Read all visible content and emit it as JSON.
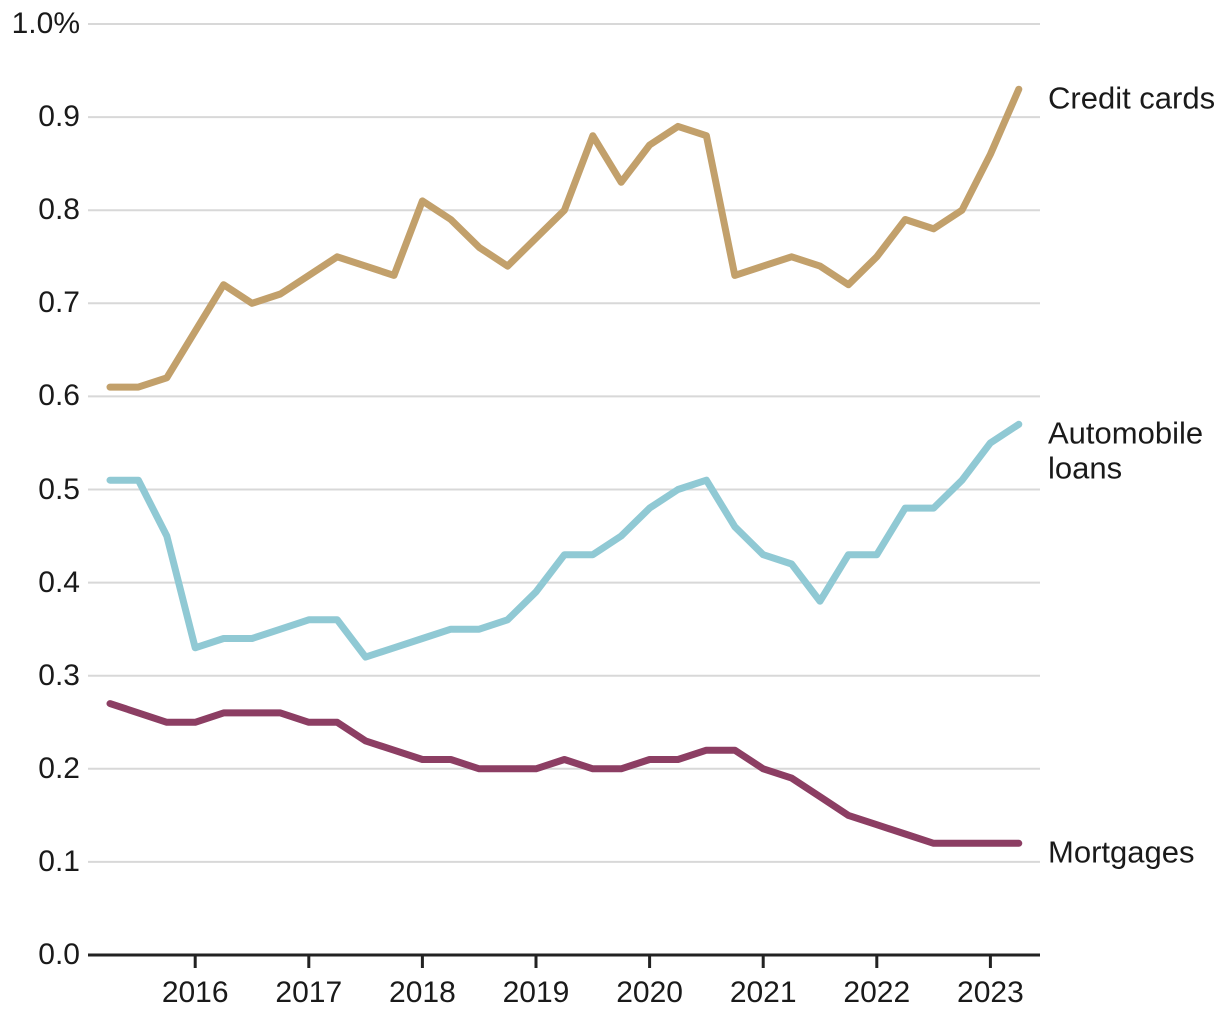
{
  "chart_data": {
    "type": "line",
    "title": "",
    "unit": "%",
    "grid": true,
    "legend_position": "right-of-line-end",
    "x_axis": {
      "frequency": "quarterly",
      "start_year": 2015,
      "start_quarter": 2,
      "end_year": 2023,
      "end_quarter": 2,
      "tick_years": [
        2016,
        2017,
        2018,
        2019,
        2020,
        2021,
        2022,
        2023
      ],
      "tick_labels": [
        "2016",
        "2017",
        "2018",
        "2019",
        "2020",
        "2021",
        "2022",
        "2023"
      ]
    },
    "y_axis": {
      "min": 0.0,
      "max": 1.0,
      "tick_interval": 0.1,
      "tick_values": [
        0.0,
        0.1,
        0.2,
        0.3,
        0.4,
        0.5,
        0.6,
        0.7,
        0.8,
        0.9,
        1.0
      ],
      "tick_labels": [
        "0.0",
        "0.1",
        "0.2",
        "0.3",
        "0.4",
        "0.5",
        "0.6",
        "0.7",
        "0.8",
        "0.9",
        "1.0%"
      ]
    },
    "series": [
      {
        "name": "Credit cards",
        "id": "credit-cards",
        "label_lines": [
          "Credit cards"
        ],
        "color": "#C2A06B",
        "values": [
          0.61,
          0.61,
          0.62,
          0.67,
          0.72,
          0.7,
          0.71,
          0.73,
          0.75,
          0.74,
          0.73,
          0.81,
          0.79,
          0.76,
          0.74,
          0.77,
          0.8,
          0.88,
          0.83,
          0.87,
          0.89,
          0.88,
          0.73,
          0.74,
          0.75,
          0.74,
          0.72,
          0.75,
          0.79,
          0.78,
          0.8,
          0.86,
          0.93
        ]
      },
      {
        "name": "Automobile loans",
        "id": "automobile-loans",
        "label_lines": [
          "Automobile",
          "loans"
        ],
        "color": "#90C9D4",
        "values": [
          0.51,
          0.51,
          0.45,
          0.33,
          0.34,
          0.34,
          0.35,
          0.36,
          0.36,
          0.32,
          0.33,
          0.34,
          0.35,
          0.35,
          0.36,
          0.39,
          0.43,
          0.43,
          0.45,
          0.48,
          0.5,
          0.51,
          0.46,
          0.43,
          0.42,
          0.38,
          0.43,
          0.43,
          0.48,
          0.48,
          0.51,
          0.55,
          0.57
        ]
      },
      {
        "name": "Mortgages",
        "id": "mortgages",
        "label_lines": [
          "Mortgages"
        ],
        "color": "#8C3E63",
        "values": [
          0.27,
          0.26,
          0.25,
          0.25,
          0.26,
          0.26,
          0.26,
          0.25,
          0.25,
          0.23,
          0.22,
          0.21,
          0.21,
          0.2,
          0.2,
          0.2,
          0.21,
          0.2,
          0.2,
          0.21,
          0.21,
          0.22,
          0.22,
          0.2,
          0.19,
          0.17,
          0.15,
          0.14,
          0.13,
          0.12,
          0.12,
          0.12,
          0.12
        ]
      }
    ],
    "colors": {
      "gridline": "#D8D8D8",
      "axis": "#222222",
      "text": "#1A1A1A"
    }
  }
}
